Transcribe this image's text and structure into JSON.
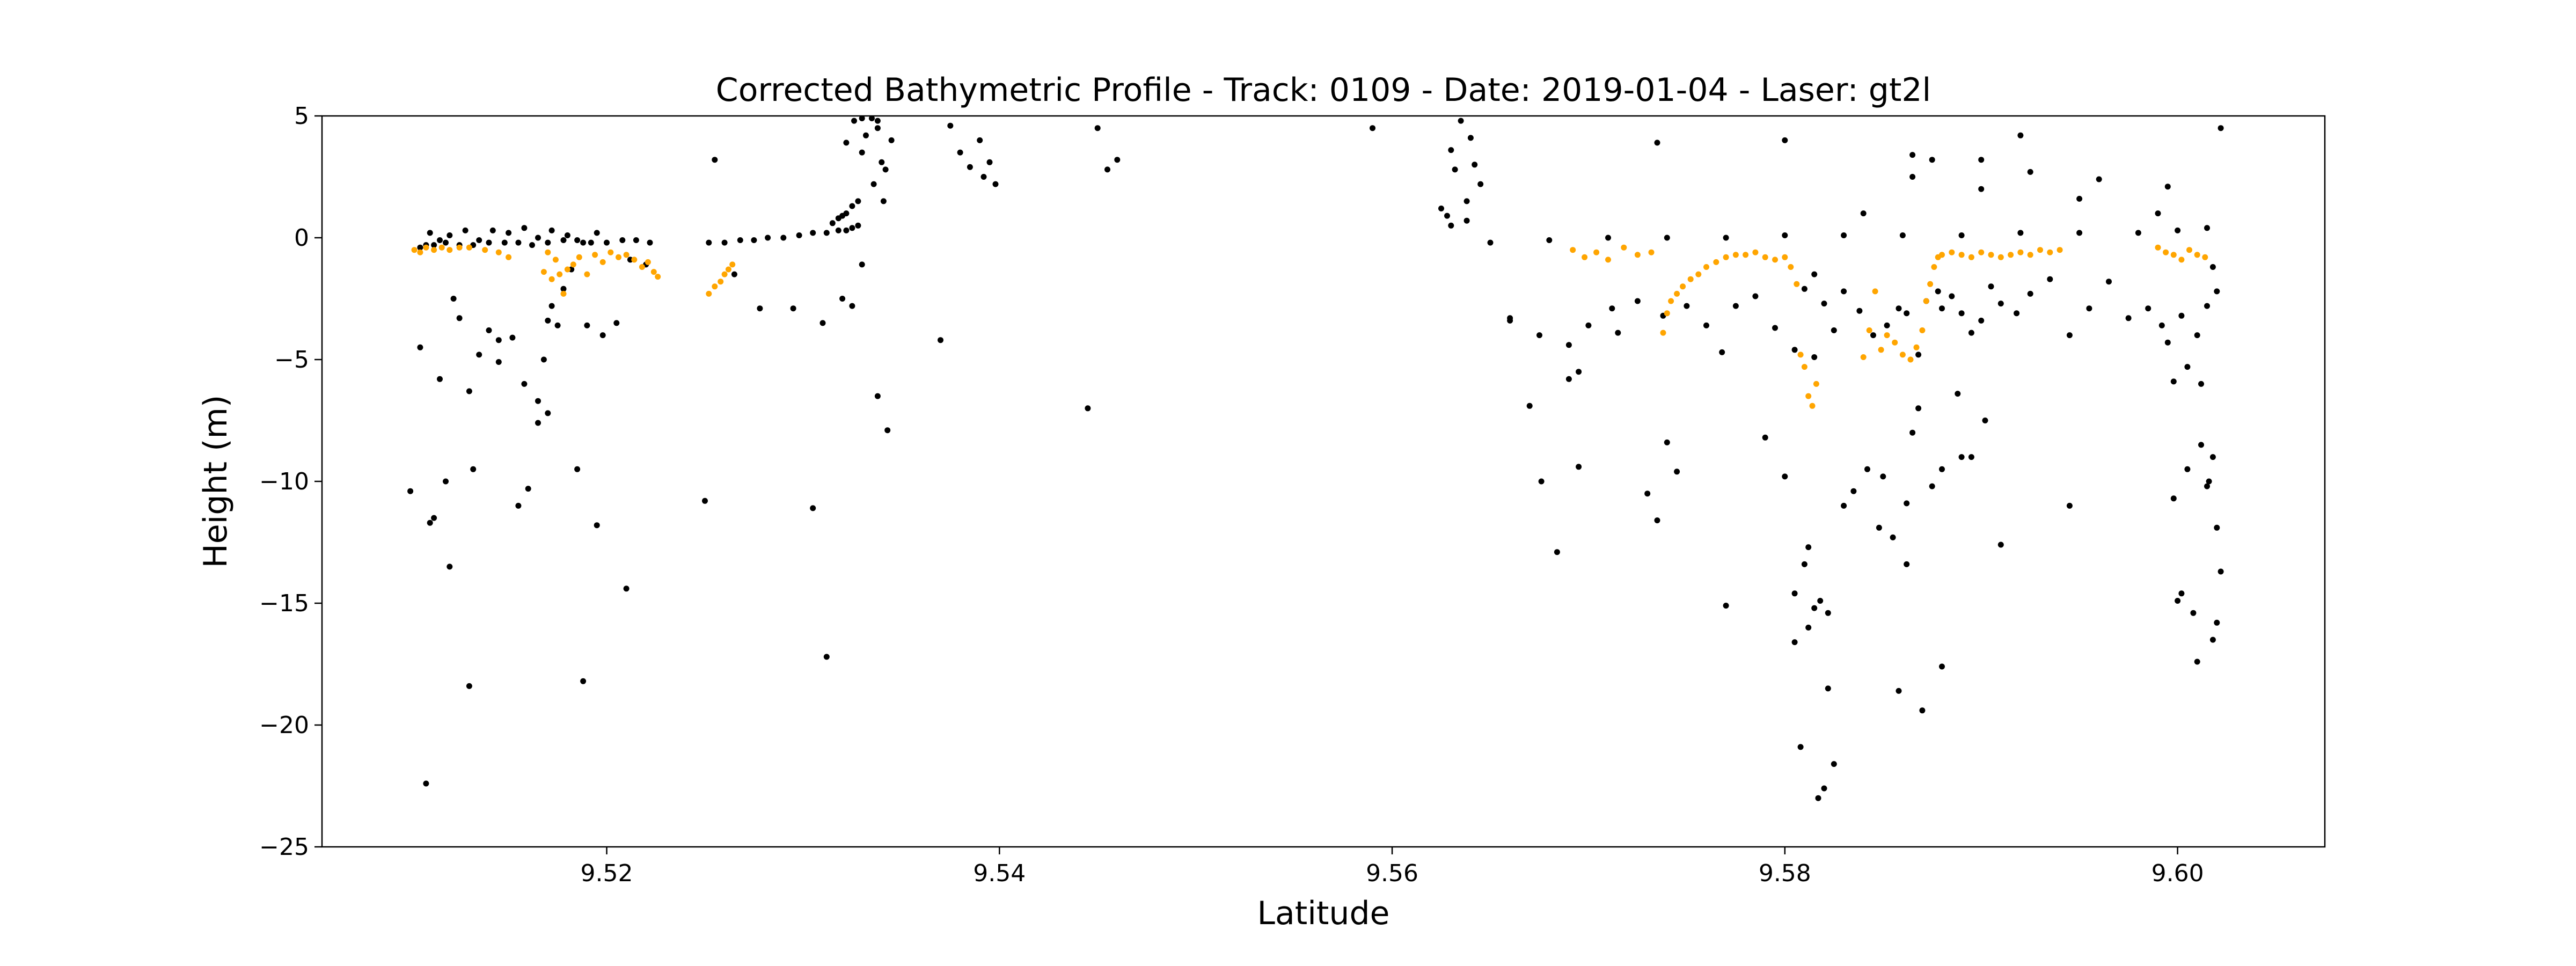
{
  "colors": {
    "background": "#ffffff",
    "noise_points": "#000000",
    "bathymetry_points": "#ffa500",
    "axis": "#000000"
  },
  "chart_data": {
    "type": "scatter",
    "title": "Corrected Bathymetric Profile - Track: 0109 - Date: 2019-01-04 - Laser: gt2l",
    "xlabel": "Latitude",
    "ylabel": "Height (m)",
    "xlim": [
      9.5055,
      9.6075
    ],
    "ylim": [
      -25,
      5
    ],
    "xticks": [
      9.52,
      9.54,
      9.56,
      9.58,
      9.6
    ],
    "xtick_labels": [
      "9.52",
      "9.54",
      "9.56",
      "9.58",
      "9.60"
    ],
    "yticks": [
      5,
      0,
      -5,
      -10,
      -15,
      -20,
      -25
    ],
    "ytick_labels": [
      "5",
      "0",
      "−5",
      "−10",
      "−15",
      "−20",
      "−25"
    ],
    "grid": false,
    "legend": "none",
    "series": [
      {
        "color": "#000000",
        "x": [
          9.5105,
          9.5108,
          9.5112,
          9.5118,
          9.5125,
          9.5132,
          9.514,
          9.5148,
          9.5155,
          9.5162,
          9.517,
          9.5178,
          9.5185,
          9.5192,
          9.52,
          9.5208,
          9.5215,
          9.5222,
          9.511,
          9.5115,
          9.512,
          9.5128,
          9.5135,
          9.5142,
          9.515,
          9.5158,
          9.5165,
          9.5172,
          9.518,
          9.5188,
          9.5195,
          9.51,
          9.5112,
          9.5118,
          9.5122,
          9.5125,
          9.513,
          9.5135,
          9.514,
          9.5145,
          9.5152,
          9.5158,
          9.5165,
          9.517,
          9.5172,
          9.5175,
          9.5178,
          9.5182,
          9.519,
          9.5198,
          9.5205,
          9.5212,
          9.522,
          9.5105,
          9.511,
          9.5115,
          9.512,
          9.5132,
          9.5145,
          9.516,
          9.5168,
          9.5185,
          9.5195,
          9.521,
          9.5108,
          9.513,
          9.5188,
          9.5155,
          9.517,
          9.5165,
          9.5252,
          9.526,
          9.5268,
          9.5275,
          9.5282,
          9.529,
          9.5298,
          9.5305,
          9.5312,
          9.5318,
          9.5322,
          9.5325,
          9.5328,
          9.5255,
          9.5265,
          9.5278,
          9.5295,
          9.531,
          9.532,
          9.525,
          9.5305,
          9.5312,
          9.5315,
          9.5318,
          9.532,
          9.5322,
          9.5325,
          9.5328,
          9.533,
          9.5332,
          9.5335,
          9.5338,
          9.534,
          9.5342,
          9.5345,
          9.5336,
          9.5341,
          9.5326,
          9.5322,
          9.5325,
          9.533,
          9.5338,
          9.5343,
          9.533,
          9.5338,
          9.537,
          9.5375,
          9.538,
          9.5385,
          9.539,
          9.5392,
          9.5395,
          9.5398,
          9.545,
          9.5455,
          9.546,
          9.5445,
          9.559,
          9.5625,
          9.5628,
          9.563,
          9.5632,
          9.5635,
          9.5638,
          9.564,
          9.5642,
          9.5645,
          9.563,
          9.5638,
          9.565,
          9.568,
          9.571,
          9.574,
          9.577,
          9.58,
          9.583,
          9.586,
          9.589,
          9.592,
          9.595,
          9.598,
          9.6,
          9.6015,
          9.566,
          9.5675,
          9.569,
          9.57,
          9.5712,
          9.5725,
          9.5738,
          9.575,
          9.576,
          9.5768,
          9.5775,
          9.5785,
          9.5795,
          9.5805,
          9.581,
          9.5815,
          9.582,
          9.5825,
          9.583,
          9.5838,
          9.5845,
          9.5852,
          9.5858,
          9.5862,
          9.5868,
          9.5872,
          9.5878,
          9.5885,
          9.589,
          9.5895,
          9.59,
          9.5905,
          9.591,
          9.5918,
          9.5925,
          9.5935,
          9.5945,
          9.5955,
          9.5965,
          9.5975,
          9.5985,
          9.5992,
          9.5995,
          9.5998,
          9.6002,
          9.6005,
          9.601,
          9.6015,
          9.6018,
          9.602,
          9.5676,
          9.5684,
          9.569,
          9.5695,
          9.573,
          9.5735,
          9.574,
          9.5745,
          9.579,
          9.58,
          9.5805,
          9.5808,
          9.581,
          9.5812,
          9.5815,
          9.5818,
          9.582,
          9.5822,
          9.5825,
          9.5805,
          9.5812,
          9.5817,
          9.5822,
          9.5835,
          9.5842,
          9.5848,
          9.5855,
          9.5858,
          9.5862,
          9.5865,
          9.5862,
          9.5868,
          9.5875,
          9.588,
          9.5888,
          9.5895,
          9.5902,
          9.591,
          9.587,
          9.588,
          9.589,
          9.5945,
          9.5998,
          9.6002,
          9.6005,
          9.6008,
          9.601,
          9.6012,
          9.6015,
          9.6018,
          9.602,
          9.6022,
          9.6012,
          9.6016,
          9.6,
          9.6018,
          9.602,
          9.5865,
          9.5875,
          9.588,
          9.59,
          9.5925,
          9.595,
          9.596,
          9.5995,
          9.6022,
          9.599,
          9.58,
          9.5815,
          9.5735,
          9.566,
          9.5715,
          9.584,
          9.59,
          9.592,
          9.5865,
          9.5695,
          9.567,
          9.577,
          9.583,
          9.585
        ],
        "y": [
          -0.4,
          -0.3,
          -0.3,
          -0.2,
          -0.3,
          -0.3,
          -0.2,
          -0.2,
          -0.2,
          -0.3,
          -0.2,
          -0.1,
          -0.1,
          -0.2,
          -0.2,
          -0.1,
          -0.1,
          -0.2,
          0.2,
          -0.1,
          0.1,
          0.3,
          -0.1,
          0.3,
          0.2,
          0.4,
          0.0,
          0.3,
          0.1,
          -0.2,
          0.2,
          -10.4,
          -11.5,
          -10.0,
          -2.5,
          -3.3,
          -6.3,
          -4.8,
          -3.8,
          -5.1,
          -4.1,
          -6.0,
          -7.6,
          -3.4,
          -2.8,
          -3.6,
          -2.1,
          -1.3,
          -3.6,
          -4.0,
          -3.5,
          -0.9,
          -1.1,
          -4.5,
          -11.7,
          -5.8,
          -13.5,
          -9.5,
          -4.2,
          -10.3,
          -5.0,
          -9.5,
          -11.8,
          -14.4,
          -22.4,
          -18.4,
          -18.2,
          -11.0,
          -7.2,
          -6.7,
          -0.2,
          -0.2,
          -0.1,
          -0.1,
          0.0,
          0.0,
          0.1,
          0.2,
          0.2,
          0.3,
          0.3,
          0.4,
          0.5,
          3.2,
          -1.5,
          -2.9,
          -2.9,
          -3.5,
          -2.5,
          -10.8,
          -11.1,
          -17.2,
          0.6,
          0.8,
          0.9,
          1.0,
          1.3,
          1.5,
          3.5,
          4.2,
          4.9,
          4.5,
          3.1,
          2.8,
          4.0,
          2.2,
          1.5,
          4.8,
          3.9,
          -2.8,
          -1.1,
          -6.5,
          -7.9,
          4.9,
          4.8,
          -4.2,
          4.6,
          3.5,
          2.9,
          4.0,
          2.5,
          3.1,
          2.2,
          4.5,
          2.8,
          3.2,
          -7.0,
          4.5,
          1.2,
          0.9,
          3.6,
          2.8,
          4.8,
          1.5,
          4.1,
          3.0,
          2.2,
          0.5,
          0.7,
          -0.2,
          -0.1,
          0.0,
          0.0,
          0.0,
          0.1,
          0.1,
          0.1,
          0.1,
          0.2,
          0.2,
          0.2,
          0.3,
          0.4,
          -3.3,
          -4.0,
          -4.4,
          -3.6,
          -2.9,
          -2.6,
          -3.2,
          -2.8,
          -3.6,
          -4.7,
          -2.8,
          -2.4,
          -3.7,
          -4.6,
          -2.1,
          -4.9,
          -2.7,
          -3.8,
          -2.2,
          -3.0,
          -4.0,
          -3.6,
          -2.9,
          -3.1,
          -4.8,
          -2.6,
          -2.2,
          -2.4,
          -3.1,
          -3.9,
          -3.4,
          -2.0,
          -2.7,
          -3.1,
          -2.3,
          -1.7,
          -4.0,
          -2.9,
          -1.8,
          -3.3,
          -2.9,
          -3.6,
          -4.3,
          -5.9,
          -3.2,
          -5.3,
          -4.0,
          -2.8,
          -1.2,
          -2.2,
          -10.0,
          -12.9,
          -5.8,
          -9.4,
          -10.5,
          -11.6,
          -8.4,
          -9.6,
          -8.2,
          -9.8,
          -14.6,
          -20.9,
          -13.4,
          -16.0,
          -15.2,
          -14.9,
          -22.6,
          -15.4,
          -21.6,
          -16.6,
          -12.7,
          -23.0,
          -18.5,
          -10.4,
          -9.5,
          -11.9,
          -12.3,
          -18.6,
          -10.9,
          -8.0,
          -13.4,
          -7.0,
          -10.2,
          -9.5,
          -6.4,
          -9.0,
          -7.5,
          -12.6,
          -19.4,
          -17.6,
          -9.0,
          -11.0,
          -10.7,
          -14.6,
          -9.5,
          -15.4,
          -17.4,
          -8.5,
          -10.2,
          -9.0,
          -11.9,
          -13.7,
          -6.0,
          -10.0,
          -14.9,
          -16.5,
          -15.8,
          3.4,
          3.2,
          -2.9,
          3.2,
          2.7,
          1.6,
          2.4,
          2.1,
          4.5,
          1.0,
          4.0,
          -1.5,
          3.9,
          -3.4,
          -3.9,
          1.0,
          2.0,
          4.2,
          2.5,
          -5.5,
          -6.9,
          -15.1,
          -11.0,
          -9.8
        ]
      },
      {
        "color": "#ffa500",
        "x": [
          9.5102,
          9.5105,
          9.5108,
          9.5112,
          9.5116,
          9.512,
          9.5125,
          9.513,
          9.5138,
          9.5145,
          9.515,
          9.5168,
          9.517,
          9.5172,
          9.5174,
          9.5176,
          9.5178,
          9.518,
          9.5183,
          9.5186,
          9.519,
          9.5194,
          9.5198,
          9.5202,
          9.5206,
          9.521,
          9.5214,
          9.5218,
          9.5221,
          9.5224,
          9.5226,
          9.5252,
          9.5255,
          9.5258,
          9.526,
          9.5262,
          9.5264,
          9.5692,
          9.5698,
          9.5704,
          9.571,
          9.5718,
          9.5725,
          9.5732,
          9.5738,
          9.574,
          9.5742,
          9.5745,
          9.5748,
          9.5752,
          9.5756,
          9.576,
          9.5765,
          9.577,
          9.5775,
          9.578,
          9.5785,
          9.579,
          9.5795,
          9.58,
          9.5803,
          9.5806,
          9.5808,
          9.581,
          9.5812,
          9.5814,
          9.5816,
          9.584,
          9.5843,
          9.5846,
          9.5849,
          9.5852,
          9.5856,
          9.586,
          9.5864,
          9.5867,
          9.587,
          9.5872,
          9.5874,
          9.5876,
          9.5878,
          9.588,
          9.5885,
          9.589,
          9.5895,
          9.59,
          9.5905,
          9.591,
          9.5915,
          9.592,
          9.5925,
          9.593,
          9.5935,
          9.594,
          9.599,
          9.5994,
          9.5998,
          9.6002,
          9.6006,
          9.601,
          9.6014
        ],
        "y": [
          -0.5,
          -0.6,
          -0.4,
          -0.5,
          -0.4,
          -0.5,
          -0.4,
          -0.4,
          -0.5,
          -0.6,
          -0.8,
          -1.4,
          -0.6,
          -1.7,
          -0.9,
          -1.5,
          -2.3,
          -1.3,
          -1.1,
          -0.8,
          -1.5,
          -0.7,
          -1.0,
          -0.6,
          -0.8,
          -0.7,
          -0.9,
          -1.2,
          -1.0,
          -1.4,
          -1.6,
          -2.3,
          -2.0,
          -1.8,
          -1.5,
          -1.3,
          -1.1,
          -0.5,
          -0.8,
          -0.6,
          -0.9,
          -0.4,
          -0.7,
          -0.6,
          -3.9,
          -3.1,
          -2.6,
          -2.3,
          -2.0,
          -1.7,
          -1.5,
          -1.2,
          -1.0,
          -0.8,
          -0.7,
          -0.7,
          -0.6,
          -0.8,
          -0.9,
          -0.8,
          -1.2,
          -1.9,
          -4.8,
          -5.3,
          -6.5,
          -6.9,
          -6.0,
          -4.9,
          -3.8,
          -2.2,
          -4.6,
          -4.0,
          -4.3,
          -4.8,
          -5.0,
          -4.5,
          -3.8,
          -2.6,
          -1.9,
          -1.2,
          -0.8,
          -0.7,
          -0.6,
          -0.7,
          -0.8,
          -0.6,
          -0.7,
          -0.8,
          -0.7,
          -0.6,
          -0.7,
          -0.5,
          -0.6,
          -0.5,
          -0.4,
          -0.6,
          -0.7,
          -0.9,
          -0.5,
          -0.7,
          -0.8
        ]
      }
    ]
  }
}
